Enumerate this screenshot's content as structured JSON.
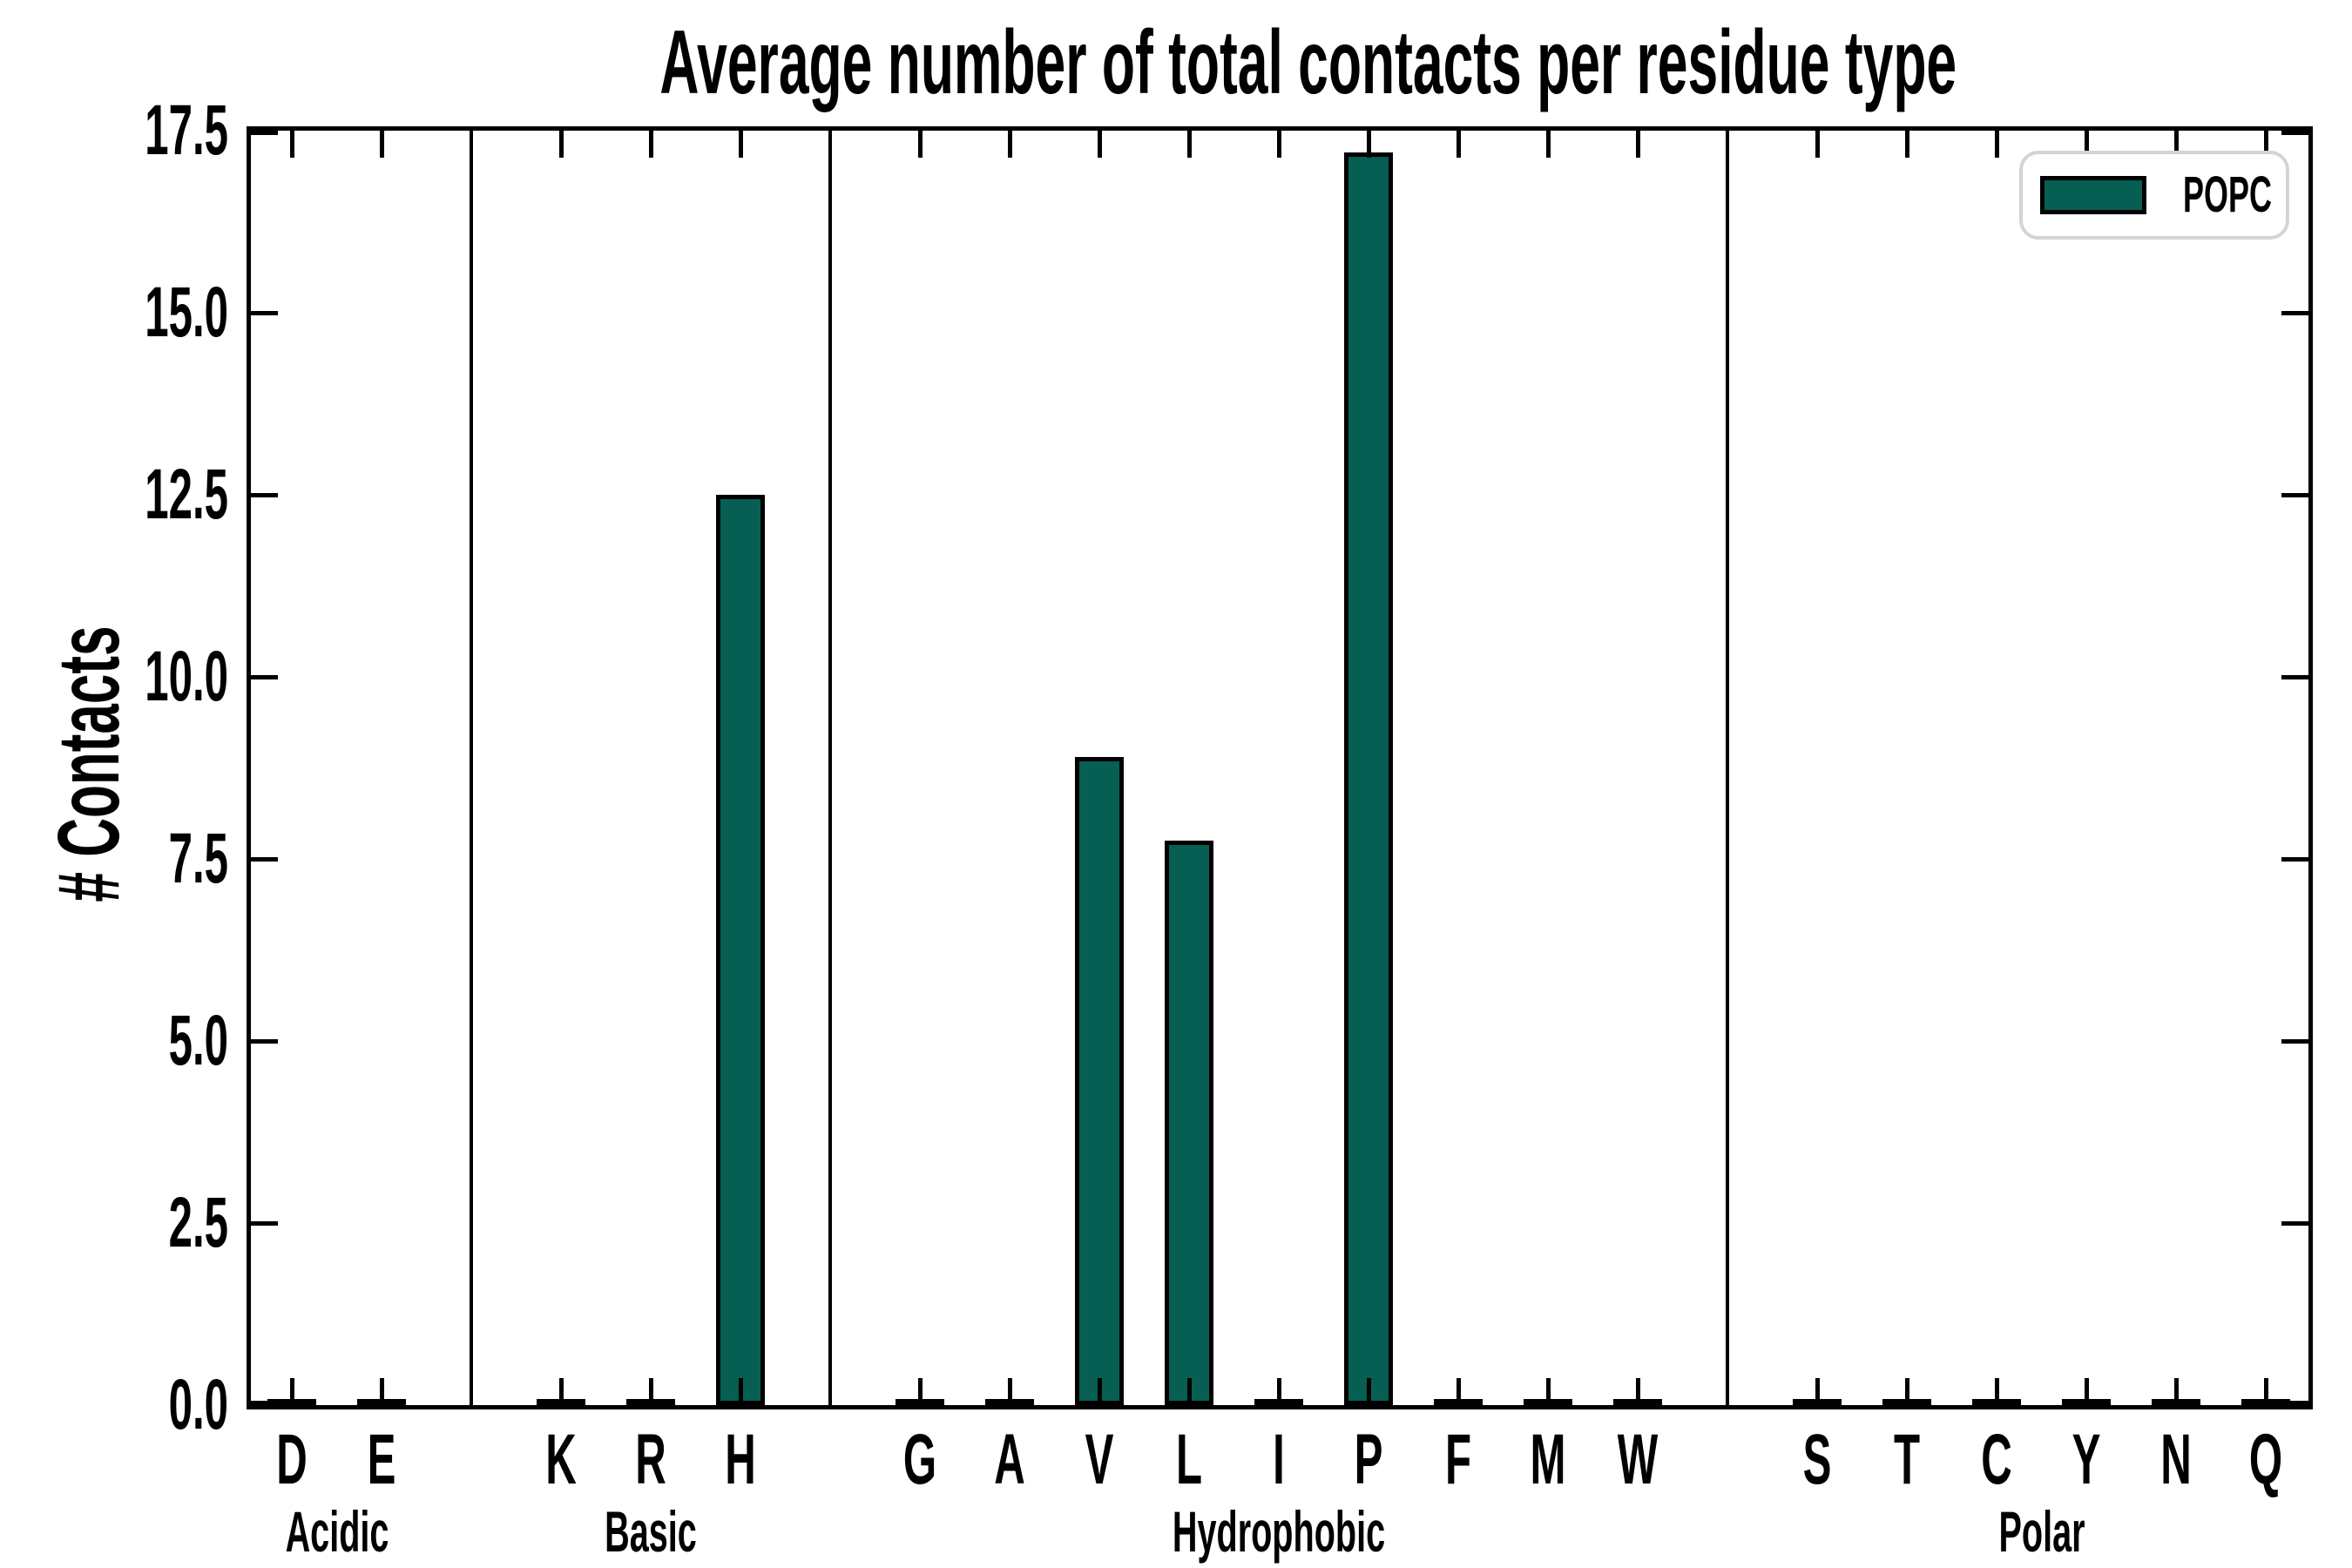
{
  "chart_data": {
    "type": "bar",
    "title": "Average number of total contacts per residue type",
    "xlabel": "",
    "ylabel": "# Contacts",
    "ylim": [
      0,
      17.5
    ],
    "yticks": [
      0.0,
      2.5,
      5.0,
      7.5,
      10.0,
      12.5,
      15.0,
      17.5
    ],
    "grid": false,
    "tick_direction": "in",
    "bar_color": "#075e52",
    "bar_edge_color": "#000000",
    "group_separator_color": "#000000",
    "legend": {
      "label": "POPC",
      "swatch_color": "#075e52",
      "position": "upper right",
      "border_color": "#d4d4d4"
    },
    "groups": [
      {
        "name": "Acidic",
        "residues": [
          "D",
          "E"
        ],
        "values": [
          0.05,
          0.05
        ]
      },
      {
        "name": "Basic",
        "residues": [
          "K",
          "R",
          "H"
        ],
        "values": [
          0.05,
          0.05,
          12.5
        ]
      },
      {
        "name": "Hydrophobic",
        "residues": [
          "G",
          "A",
          "V",
          "L",
          "I",
          "P",
          "F",
          "M",
          "W"
        ],
        "values": [
          0.05,
          0.05,
          8.9,
          7.75,
          0.05,
          17.2,
          0.05,
          0.05,
          0.05
        ]
      },
      {
        "name": "Polar",
        "residues": [
          "S",
          "T",
          "C",
          "Y",
          "N",
          "Q"
        ],
        "values": [
          0.05,
          0.05,
          0.05,
          0.05,
          0.05,
          0.05
        ]
      }
    ]
  }
}
